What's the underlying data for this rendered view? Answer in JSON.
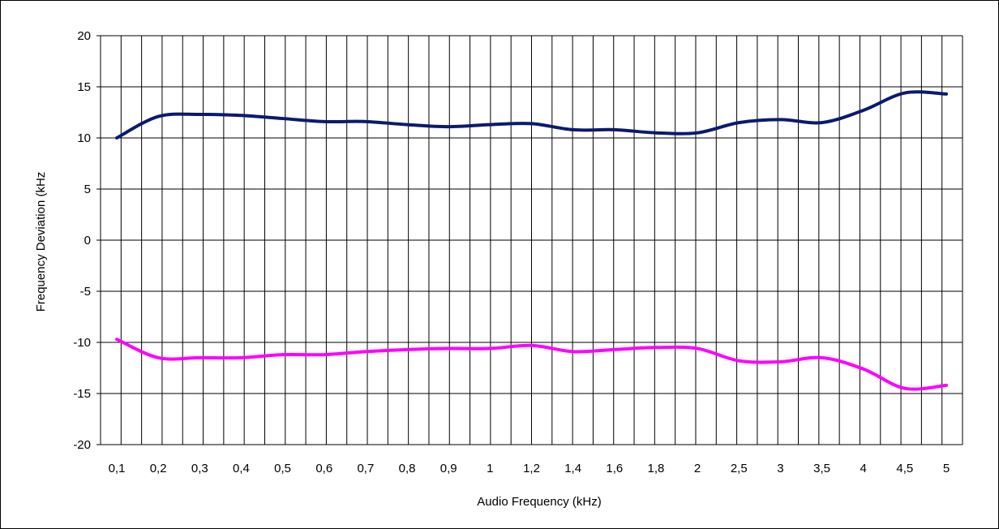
{
  "chart_data": {
    "type": "line",
    "xlabel": "Audio Frequency (kHz)",
    "ylabel": "Frequency Deviation (kHz",
    "x_tick_labels": [
      "0,1",
      "0,2",
      "0,3",
      "0,4",
      "0,5",
      "0,6",
      "0,7",
      "0,8",
      "0,9",
      "1",
      "1,2",
      "1,4",
      "1,6",
      "1,8",
      "2",
      "2,5",
      "3",
      "3,5",
      "4",
      "4,5",
      "5"
    ],
    "y_tick_labels": [
      "20",
      "15",
      "10",
      "5",
      "0",
      "-5",
      "-10",
      "-15",
      "-20"
    ],
    "ylim": [
      -20,
      20
    ],
    "y_step": 5,
    "grid": true,
    "legend": "none",
    "series": [
      {
        "color": "#0a1a6e",
        "x": [
          "0,1",
          "0,2",
          "0,3",
          "0,4",
          "0,5",
          "0,6",
          "0,7",
          "0,8",
          "0,9",
          "1",
          "1,2",
          "1,4",
          "1,6",
          "1,8",
          "2",
          "2,5",
          "3",
          "3,5",
          "4",
          "4,5",
          "5"
        ],
        "values": [
          10.0,
          12.1,
          12.3,
          12.2,
          11.9,
          11.6,
          11.6,
          11.3,
          11.1,
          11.3,
          11.4,
          10.8,
          10.8,
          10.5,
          10.5,
          11.5,
          11.8,
          11.5,
          12.7,
          14.4,
          14.3
        ]
      },
      {
        "color": "#ff00ff",
        "x": [
          "0,1",
          "0,2",
          "0,3",
          "0,4",
          "0,5",
          "0,6",
          "0,7",
          "0,8",
          "0,9",
          "1",
          "1,2",
          "1,4",
          "1,6",
          "1,8",
          "2",
          "2,5",
          "3",
          "3,5",
          "4",
          "4,5",
          "5"
        ],
        "values": [
          -9.7,
          -11.5,
          -11.5,
          -11.5,
          -11.2,
          -11.2,
          -10.9,
          -10.7,
          -10.6,
          -10.6,
          -10.3,
          -10.9,
          -10.7,
          -10.5,
          -10.6,
          -11.8,
          -11.9,
          -11.5,
          -12.6,
          -14.5,
          -14.2
        ]
      }
    ]
  }
}
